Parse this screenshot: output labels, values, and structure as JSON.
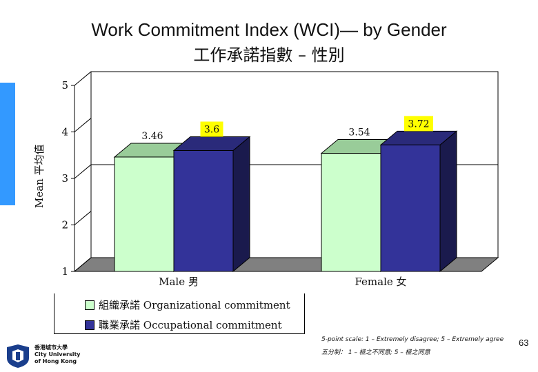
{
  "title_en": "Work Commitment Index (WCI)— by Gender",
  "title_zh": "工作承諾指數 – 性別",
  "chart_data": {
    "type": "bar",
    "categories": [
      "Male 男",
      "Female 女"
    ],
    "series": [
      {
        "name": "組織承諾  Organizational commitment",
        "values": [
          3.46,
          3.54
        ],
        "labels": [
          "3.46",
          "3.54"
        ],
        "color": "#ccffcc"
      },
      {
        "name": "職業承諾  Occupational commitment",
        "values": [
          3.6,
          3.72
        ],
        "labels": [
          "3.6",
          "3.72"
        ],
        "color": "#333399"
      }
    ],
    "ylabel": "Mean 平均值",
    "ylim": [
      1,
      5
    ],
    "yticks": [
      "1",
      "2",
      "3",
      "4",
      "5"
    ],
    "gridlines": [
      3
    ],
    "legend_position": "bottom"
  },
  "colors": {
    "label_highlight": "#ffff00",
    "floor": "#808080",
    "side_light": "#999999",
    "side_dark": "#1a1a4d",
    "accent": "#3399ff"
  },
  "note_line1": "5-point scale: 1 – Extremely disagree; 5 – Extremely agree",
  "note_line2": "五分制： 1 – 極之不同意; 5 – 極之同意",
  "page_number": "63",
  "logo": {
    "line1": "香港城市大學",
    "line2": "City University",
    "line3": "of Hong Kong",
    "icon": "cityu-logo-icon"
  }
}
